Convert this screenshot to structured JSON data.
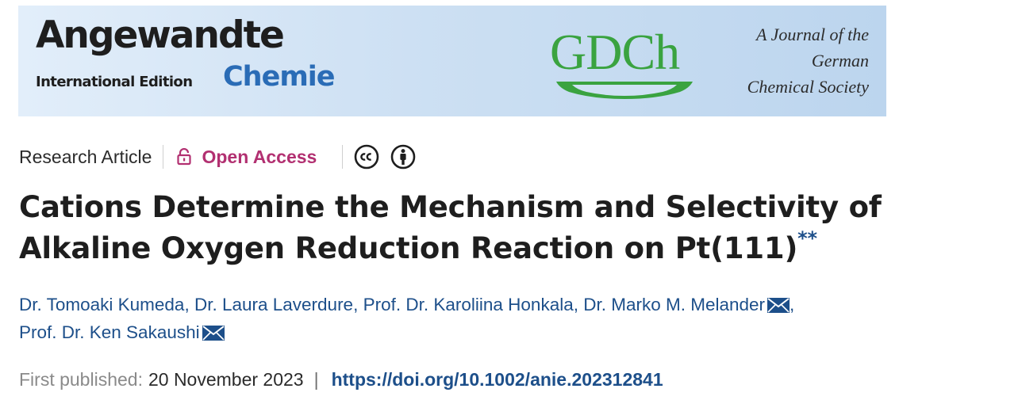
{
  "banner": {
    "angewandte": "Angewandte",
    "international_edition": "International Edition",
    "chemie": "Chemie",
    "gdch": "GDCh",
    "journal_lines": [
      "A Journal of the",
      "German",
      "Chemical Society"
    ]
  },
  "article": {
    "type": "Research Article",
    "access": "Open Access",
    "license_icons": [
      "cc-icon",
      "by-attribution-icon"
    ],
    "title": "Cations Determine the Mechanism and Selectivity of Alkaline Oxygen Reduction Reaction on Pt(111)",
    "title_note": "**"
  },
  "authors": [
    {
      "name": "Dr. Tomoaki Kumeda",
      "sep": ", "
    },
    {
      "name": "Dr. Laura Laverdure",
      "sep": ", "
    },
    {
      "name": "Prof. Dr. Karoliina Honkala",
      "sep": ", "
    },
    {
      "name": "Dr. Marko M. Melander",
      "sep": ","
    },
    {
      "name": "Prof. Dr. Ken Sakaushi",
      "sep": ""
    }
  ],
  "publication": {
    "first_published_label": "First published:",
    "first_published_date": "20 November 2023",
    "separator": "|",
    "doi": "https://doi.org/10.1002/anie.202312841"
  },
  "colors": {
    "link": "#1d4f8a",
    "open_access": "#b23071",
    "gdch_green": "#3aa340",
    "chemie_blue": "#2a6cb6"
  }
}
